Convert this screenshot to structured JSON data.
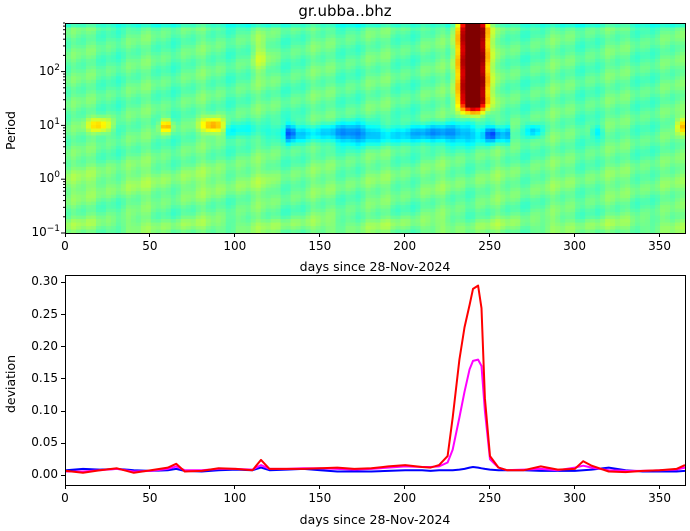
{
  "title": "gr.ubba..bhz",
  "top_plot": {
    "ylabel": "Period",
    "xlabel": "days since 28-Nov-2024",
    "xticks": [
      "0",
      "50",
      "100",
      "150",
      "200",
      "250",
      "300",
      "350"
    ],
    "yticks": [
      {
        "base": "10",
        "exp": "2"
      },
      {
        "base": "10",
        "exp": "1"
      },
      {
        "base": "10",
        "exp": "0"
      },
      {
        "base": "10",
        "exp": "−1"
      }
    ]
  },
  "bottom_plot": {
    "ylabel": "deviation",
    "xlabel": "days since 28-Nov-2024",
    "xticks": [
      "0",
      "50",
      "100",
      "150",
      "200",
      "250",
      "300",
      "350"
    ],
    "yticks": [
      "0.30",
      "0.25",
      "0.20",
      "0.15",
      "0.10",
      "0.05",
      "0.00"
    ]
  },
  "chart_data": [
    {
      "type": "heatmap",
      "title": "gr.ubba..bhz",
      "xlabel": "days since 28-Nov-2024",
      "ylabel": "Period",
      "xlim": [
        0,
        365
      ],
      "ylim": [
        0.1,
        800
      ],
      "yscale": "log",
      "colormap": "jet",
      "features": [
        {
          "desc": "strong high anomaly (dark red)",
          "x_range": [
            232,
            248
          ],
          "period_range": [
            30,
            800
          ]
        },
        {
          "desc": "low anomaly band (blue)",
          "x_range": [
            135,
            258
          ],
          "period_center": 8
        },
        {
          "desc": "mild high (yellow)",
          "x_range": [
            15,
            30
          ],
          "period_center": 10
        },
        {
          "desc": "mild high (orange/yellow)",
          "x_range": [
            55,
            62
          ],
          "period_center": 10
        },
        {
          "desc": "mild high (orange/yellow)",
          "x_range": [
            80,
            95
          ],
          "period_center": 10
        },
        {
          "desc": "mild high (yellow)",
          "x_range": [
            360,
            365
          ],
          "period_center": 10
        }
      ],
      "grid": false
    },
    {
      "type": "line",
      "xlabel": "days since 28-Nov-2024",
      "ylabel": "deviation",
      "xlim": [
        0,
        365
      ],
      "ylim": [
        -0.015,
        0.31
      ],
      "grid": false,
      "x": [
        0,
        10,
        20,
        30,
        40,
        50,
        60,
        65,
        70,
        80,
        90,
        100,
        110,
        115,
        120,
        130,
        140,
        150,
        160,
        170,
        180,
        190,
        200,
        210,
        215,
        220,
        225,
        228,
        232,
        235,
        238,
        240,
        243,
        245,
        247,
        250,
        255,
        260,
        270,
        280,
        290,
        300,
        305,
        310,
        320,
        330,
        340,
        350,
        360,
        365
      ],
      "series": [
        {
          "name": "blue",
          "color": "#0000ff",
          "values": [
            0.008,
            0.01,
            0.009,
            0.01,
            0.008,
            0.007,
            0.008,
            0.01,
            0.007,
            0.006,
            0.008,
            0.009,
            0.008,
            0.012,
            0.008,
            0.009,
            0.01,
            0.008,
            0.006,
            0.006,
            0.006,
            0.007,
            0.008,
            0.008,
            0.007,
            0.008,
            0.008,
            0.008,
            0.009,
            0.01,
            0.012,
            0.013,
            0.012,
            0.011,
            0.01,
            0.009,
            0.008,
            0.008,
            0.008,
            0.007,
            0.007,
            0.007,
            0.008,
            0.009,
            0.012,
            0.008,
            0.006,
            0.006,
            0.006,
            0.007
          ]
        },
        {
          "name": "magenta",
          "color": "#ff00ff",
          "values": [
            0.006,
            0.006,
            0.008,
            0.01,
            0.006,
            0.007,
            0.01,
            0.014,
            0.008,
            0.008,
            0.01,
            0.01,
            0.009,
            0.016,
            0.01,
            0.01,
            0.011,
            0.011,
            0.01,
            0.009,
            0.01,
            0.012,
            0.014,
            0.013,
            0.013,
            0.014,
            0.02,
            0.04,
            0.09,
            0.13,
            0.165,
            0.178,
            0.18,
            0.17,
            0.1,
            0.025,
            0.012,
            0.008,
            0.009,
            0.01,
            0.008,
            0.012,
            0.015,
            0.012,
            0.008,
            0.007,
            0.007,
            0.008,
            0.009,
            0.012
          ]
        },
        {
          "name": "red",
          "color": "#ff0000",
          "values": [
            0.007,
            0.004,
            0.008,
            0.011,
            0.004,
            0.008,
            0.012,
            0.018,
            0.006,
            0.007,
            0.011,
            0.01,
            0.008,
            0.024,
            0.01,
            0.01,
            0.01,
            0.011,
            0.012,
            0.01,
            0.011,
            0.014,
            0.016,
            0.013,
            0.012,
            0.016,
            0.03,
            0.09,
            0.18,
            0.23,
            0.265,
            0.29,
            0.295,
            0.26,
            0.12,
            0.03,
            0.012,
            0.008,
            0.008,
            0.014,
            0.009,
            0.01,
            0.022,
            0.015,
            0.006,
            0.005,
            0.007,
            0.008,
            0.01,
            0.016
          ]
        }
      ]
    }
  ]
}
